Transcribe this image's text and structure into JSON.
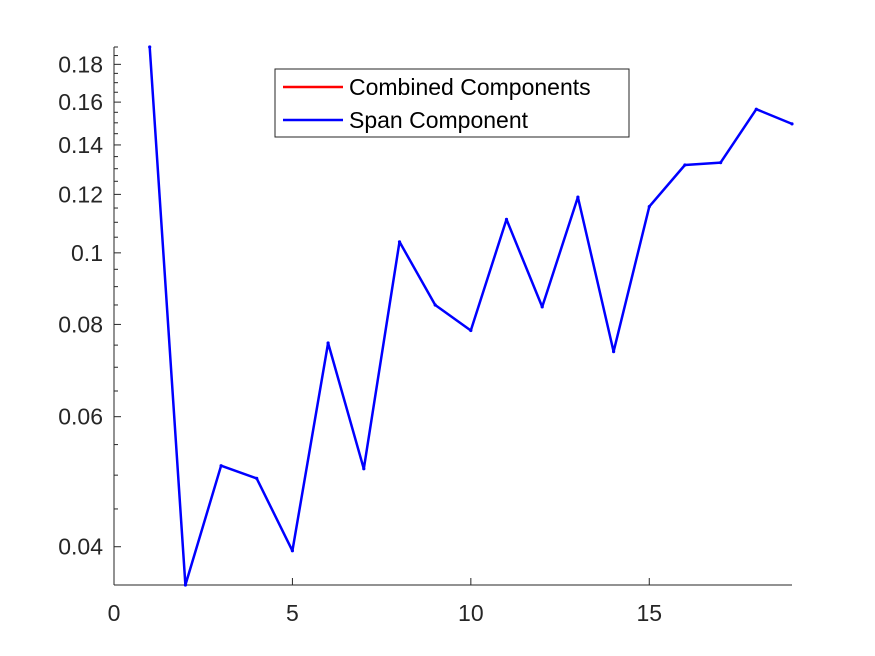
{
  "chart_data": {
    "type": "line",
    "title": "",
    "xlabel": "",
    "ylabel": "",
    "x_scale": "linear",
    "y_scale": "log",
    "xlim": [
      0,
      19
    ],
    "ylim": [
      0.0355,
      0.19
    ],
    "x_ticks": [
      0,
      5,
      10,
      15
    ],
    "x_tick_labels": [
      "0",
      "5",
      "10",
      "15"
    ],
    "y_ticks": [
      0.04,
      0.06,
      0.08,
      0.1,
      0.12,
      0.14,
      0.16,
      0.18
    ],
    "y_tick_labels": [
      "0.04",
      "0.06",
      "0.08",
      "0.1",
      "0.12",
      "0.14",
      "0.16",
      "0.18"
    ],
    "grid": false,
    "legend_position": "top-center",
    "series": [
      {
        "name": "Combined Components",
        "color": "#ff0000",
        "x": [],
        "y": []
      },
      {
        "name": "Span Component",
        "color": "#0000ff",
        "x": [
          1,
          2,
          3,
          4,
          5,
          6,
          7,
          8,
          9,
          10,
          11,
          12,
          13,
          14,
          15,
          16,
          17,
          18,
          19
        ],
        "y": [
          0.19,
          0.0355,
          0.0515,
          0.0495,
          0.0395,
          0.0755,
          0.051,
          0.1035,
          0.085,
          0.0785,
          0.111,
          0.0845,
          0.119,
          0.0735,
          0.1155,
          0.1315,
          0.1325,
          0.1565,
          0.1495
        ]
      }
    ]
  }
}
